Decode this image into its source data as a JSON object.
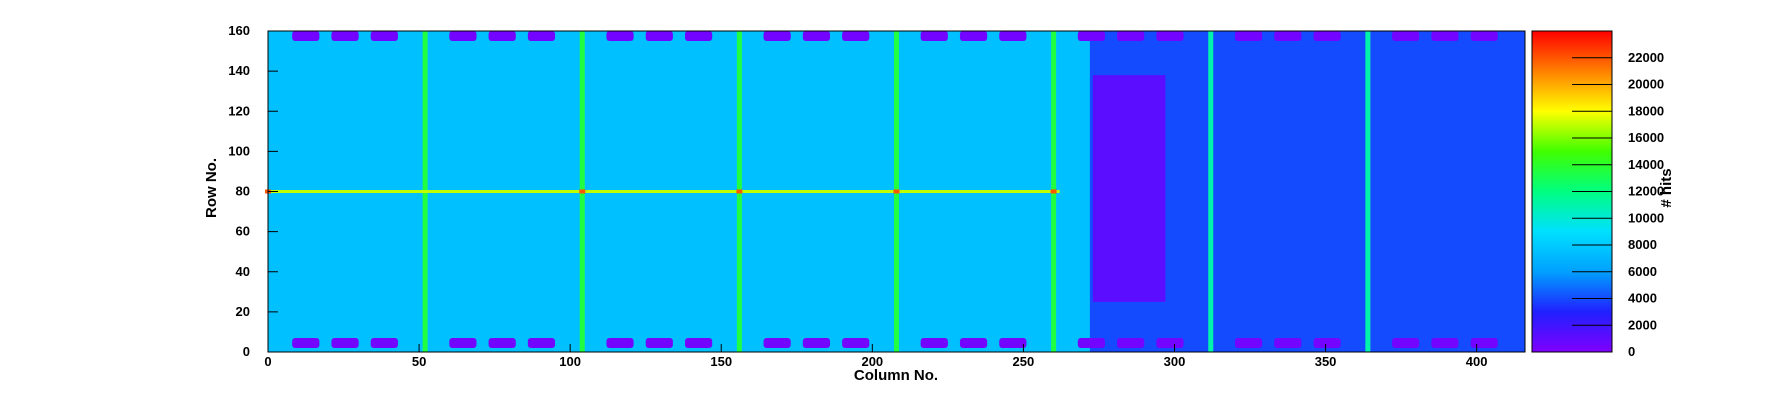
{
  "chart_data": {
    "type": "heatmap",
    "title": "",
    "xlabel": "Column No.",
    "ylabel": "Row No.",
    "zlabel": "# hits",
    "xlim": [
      0,
      416
    ],
    "ylim": [
      0,
      160
    ],
    "zlim": [
      0,
      24000
    ],
    "x_ticks": [
      0,
      50,
      100,
      150,
      200,
      250,
      300,
      350,
      400
    ],
    "y_ticks": [
      0,
      20,
      40,
      60,
      80,
      100,
      120,
      140,
      160
    ],
    "z_ticks": [
      0,
      2000,
      4000,
      6000,
      8000,
      10000,
      12000,
      14000,
      16000,
      18000,
      20000,
      22000
    ],
    "colormap": [
      "#8000ff",
      "#2020ff",
      "#00a0ff",
      "#00e0ff",
      "#00ff80",
      "#40ff00",
      "#ffff00",
      "#ff8000",
      "#ff0000"
    ],
    "background_level": 7500,
    "bright_columns": [
      {
        "x": 52,
        "value": 13500
      },
      {
        "x": 104,
        "value": 13500
      },
      {
        "x": 156,
        "value": 13500
      },
      {
        "x": 208,
        "value": 13500
      },
      {
        "x": 260,
        "value": 13500
      },
      {
        "x": 312,
        "value": 11000
      },
      {
        "x": 364,
        "value": 11000
      }
    ],
    "bright_rows": [
      {
        "y": 80,
        "x_range": [
          0,
          262
        ],
        "value": 17000
      }
    ],
    "hot_spots": [
      {
        "x": 0,
        "y": 80,
        "value": 22000
      },
      {
        "x": 104,
        "y": 80,
        "value": 22000
      },
      {
        "x": 156,
        "y": 80,
        "value": 22000
      },
      {
        "x": 208,
        "y": 80,
        "value": 22000
      },
      {
        "x": 260,
        "y": 80,
        "value": 22000
      }
    ],
    "low_region": {
      "x_range": [
        272,
        416
      ],
      "y_range": [
        0,
        160
      ],
      "value": 4000
    },
    "dense_band": {
      "x_range": [
        273,
        297
      ],
      "y_range": [
        25,
        138
      ],
      "value": 1200
    },
    "pad_blocks": {
      "top_y": [
        155,
        160
      ],
      "bottom_y": [
        2,
        7
      ],
      "x_starts": [
        8,
        21,
        34,
        60,
        73,
        86,
        112,
        125,
        138,
        164,
        177,
        190,
        216,
        229,
        242,
        268,
        281,
        294,
        320,
        333,
        346,
        372,
        385,
        398
      ],
      "width": 9,
      "value": 400
    }
  }
}
